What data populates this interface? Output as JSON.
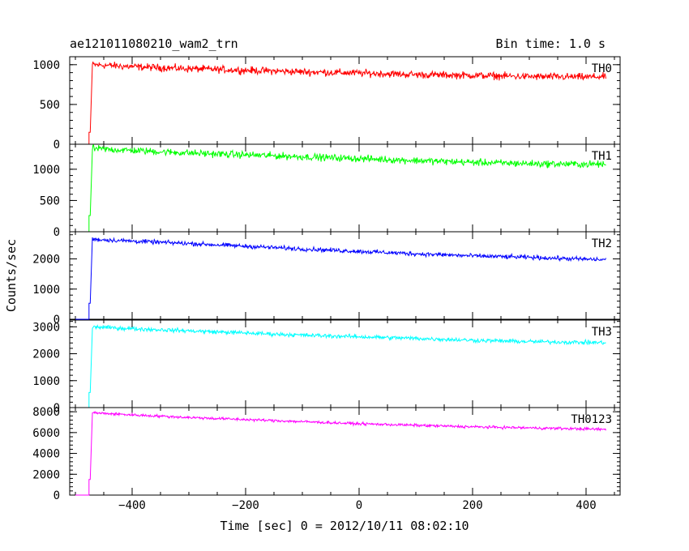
{
  "header": {
    "title": "ae121011080210_wam2_trn",
    "bin_time": "Bin time: 1.0 s"
  },
  "chart_data": {
    "type": "line",
    "xlabel": "Time [sec] 0 = 2012/10/11 08:02:10",
    "ylabel": "Counts/sec",
    "xlim": [
      -510,
      460
    ],
    "x_ticks": [
      -400,
      -200,
      0,
      200,
      400
    ],
    "x_tick_labels": [
      "−400",
      "−200",
      "0",
      "200",
      "400"
    ],
    "grid": false,
    "panels": [
      {
        "name": "TH0",
        "color": "#ff0000",
        "ylim": [
          0,
          1100
        ],
        "y_ticks": [
          0,
          500,
          1000
        ],
        "y_tick_labels": [
          "0",
          "500",
          "1000"
        ],
        "pre_level": 0,
        "step_x": -476,
        "jump_level": 150,
        "x": [
          -470,
          -400,
          -300,
          -200,
          -100,
          0,
          100,
          200,
          300,
          400,
          435
        ],
        "y": [
          1000,
          975,
          950,
          930,
          910,
          895,
          875,
          865,
          850,
          845,
          850
        ],
        "noise": 45
      },
      {
        "name": "TH1",
        "color": "#00ff00",
        "ylim": [
          0,
          1400
        ],
        "y_ticks": [
          0,
          500,
          1000
        ],
        "y_tick_labels": [
          "0",
          "500",
          "1000"
        ],
        "pre_level": 0,
        "step_x": -476,
        "jump_level": 260,
        "x": [
          -470,
          -400,
          -300,
          -200,
          -100,
          0,
          100,
          200,
          300,
          400,
          435
        ],
        "y": [
          1330,
          1300,
          1260,
          1230,
          1200,
          1170,
          1140,
          1110,
          1090,
          1080,
          1080
        ],
        "noise": 55
      },
      {
        "name": "TH2",
        "color": "#0000ff",
        "ylim": [
          0,
          2900
        ],
        "y_ticks": [
          0,
          1000,
          2000
        ],
        "y_tick_labels": [
          "0",
          "1000",
          "2000"
        ],
        "pre_level": 0,
        "step_x": -476,
        "jump_level": 530,
        "x": [
          -470,
          -400,
          -300,
          -200,
          -100,
          0,
          100,
          200,
          300,
          400,
          435
        ],
        "y": [
          2650,
          2590,
          2510,
          2420,
          2330,
          2250,
          2170,
          2100,
          2050,
          1990,
          1970
        ],
        "noise": 70
      },
      {
        "name": "TH3",
        "color": "#00ffff",
        "ylim": [
          0,
          3250
        ],
        "y_ticks": [
          0,
          1000,
          2000,
          3000
        ],
        "y_tick_labels": [
          "0",
          "1000",
          "2000",
          "3000"
        ],
        "pre_level": 0,
        "step_x": -476,
        "jump_level": 560,
        "x": [
          -470,
          -400,
          -300,
          -200,
          -100,
          0,
          100,
          200,
          300,
          400,
          435
        ],
        "y": [
          3000,
          2930,
          2850,
          2770,
          2690,
          2630,
          2570,
          2500,
          2450,
          2420,
          2410
        ],
        "noise": 75
      },
      {
        "name": "TH0123",
        "color": "#ff00ff",
        "ylim": [
          0,
          8400
        ],
        "y_ticks": [
          0,
          2000,
          4000,
          6000,
          8000
        ],
        "y_tick_labels": [
          "0",
          "2000",
          "4000",
          "6000",
          "8000"
        ],
        "pre_level": 0,
        "step_x": -476,
        "jump_level": 1500,
        "x": [
          -470,
          -400,
          -300,
          -200,
          -100,
          0,
          100,
          200,
          300,
          400,
          435
        ],
        "y": [
          7900,
          7700,
          7450,
          7250,
          7050,
          6850,
          6700,
          6550,
          6450,
          6350,
          6300
        ],
        "noise": 130
      }
    ]
  }
}
